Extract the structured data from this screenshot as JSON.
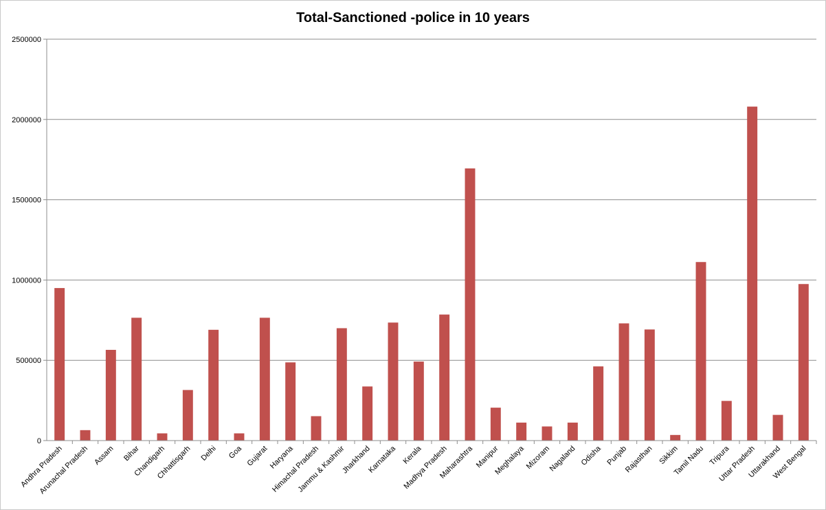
{
  "chart_data": {
    "type": "bar",
    "title": "Total-Sanctioned -police in 10 years",
    "xlabel": "",
    "ylabel": "",
    "ylim": [
      0,
      2500000
    ],
    "yticks": [
      "0",
      "500000",
      "1000000",
      "1500000",
      "2000000",
      "2500000"
    ],
    "grid": true,
    "legend": "none",
    "bar_color": "#c0504d",
    "categories": [
      "Andhra Pradesh",
      "Arunachal Pradesh",
      "Assam",
      "Bihar",
      "Chandigarh",
      "Chhattisgarh",
      "Delhi",
      "Goa",
      "Gujarat",
      "Haryana",
      "Himachal Pradesh",
      "Jammu & Kashmir",
      "Jharkhand",
      "Karnataka",
      "Kerala",
      "Madhya Pradesh",
      "Maharashtra",
      "Manipur",
      "Meghalaya",
      "Mizoram",
      "Nagaland",
      "Odisha",
      "Punjab",
      "Rajasthan",
      "Sikkim",
      "Tamil Nadu",
      "Tripura",
      "Uttar Pradesh",
      "Uttarakhand",
      "West Bengal"
    ],
    "values": [
      950000,
      65000,
      565000,
      765000,
      45000,
      315000,
      690000,
      45000,
      765000,
      487000,
      152000,
      700000,
      337000,
      735000,
      492000,
      785000,
      1695000,
      205000,
      112000,
      88000,
      112000,
      462000,
      730000,
      692000,
      35000,
      1112000,
      247000,
      2080000,
      160000,
      975000
    ]
  }
}
